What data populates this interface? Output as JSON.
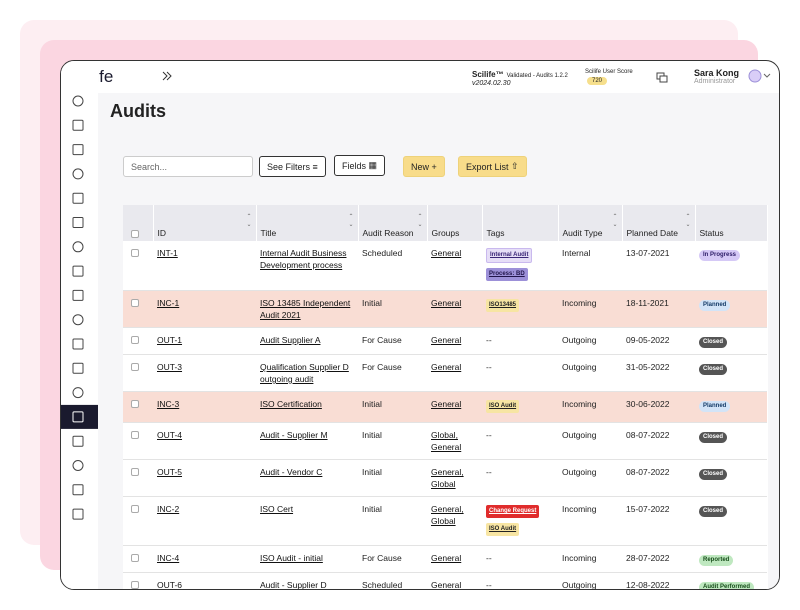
{
  "header": {
    "logo": "Scilife",
    "product": "Scilife™",
    "validated": "Validated - Audits 1.2.2",
    "version": "v2024.02.30",
    "score_label": "Scilife User Score",
    "score": "720",
    "user_name": "Sara Kong",
    "user_role": "Administrator"
  },
  "page_title": "Audits",
  "toolbar": {
    "search": "Search...",
    "filters": "See Filters",
    "fields": "Fields",
    "new": "New +",
    "export": "Export List"
  },
  "table": {
    "columns": [
      "ID",
      "Title",
      "Audit Reason",
      "Groups",
      "Tags",
      "Audit Type",
      "Planned Date",
      "Status"
    ],
    "rows": [
      {
        "id": "INT-1",
        "title": "Internal Audit Business Development process",
        "reason": "Scheduled",
        "groups": "General",
        "tags": [
          {
            "label": "Internal Audit",
            "tone": "lilac"
          },
          {
            "label": "Process: BD",
            "tone": "violet"
          }
        ],
        "type": "Internal",
        "date": "13-07-2021",
        "status": {
          "label": "In Progress",
          "tone": "progress"
        },
        "highlighted": false
      },
      {
        "id": "INC-1",
        "title": "ISO 13485 Independent Audit 2021",
        "reason": "Initial",
        "groups": "General",
        "tags": [
          {
            "label": "ISO13485",
            "tone": "yellow"
          }
        ],
        "type": "Incoming",
        "date": "18-11-2021",
        "status": {
          "label": "Planned",
          "tone": "planned"
        },
        "highlighted": true
      },
      {
        "id": "OUT-1",
        "title": "Audit Supplier A",
        "reason": "For Cause",
        "groups": "General",
        "tags": "--",
        "type": "Outgoing",
        "date": "09-05-2022",
        "status": {
          "label": "Closed",
          "tone": "closed"
        },
        "highlighted": false
      },
      {
        "id": "OUT-3",
        "title": "Qualification Supplier D outgoing audit",
        "reason": "For Cause",
        "groups": "General",
        "tags": "--",
        "type": "Outgoing",
        "date": "31-05-2022",
        "status": {
          "label": "Closed",
          "tone": "closed"
        },
        "highlighted": false
      },
      {
        "id": "INC-3",
        "title": "ISO Certification",
        "reason": "Initial",
        "groups": "General",
        "tags": [
          {
            "label": "ISO Audit",
            "tone": "yellow"
          }
        ],
        "type": "Incoming",
        "date": "30-06-2022",
        "status": {
          "label": "Planned",
          "tone": "planned"
        },
        "highlighted": true
      },
      {
        "id": "OUT-4",
        "title": "Audit - Supplier M",
        "reason": "Initial",
        "groups": "Global, General",
        "tags": "--",
        "type": "Outgoing",
        "date": "08-07-2022",
        "status": {
          "label": "Closed",
          "tone": "closed"
        },
        "highlighted": false
      },
      {
        "id": "OUT-5",
        "title": "Audit - Vendor C",
        "reason": "Initial",
        "groups": "General, Global",
        "tags": "--",
        "type": "Outgoing",
        "date": "08-07-2022",
        "status": {
          "label": "Closed",
          "tone": "closed"
        },
        "highlighted": false
      },
      {
        "id": "INC-2",
        "title": "ISO Cert",
        "reason": "Initial",
        "groups": "General, Global",
        "tags": [
          {
            "label": "Change Request",
            "tone": "red"
          },
          {
            "label": "ISO Audit",
            "tone": "yellow"
          }
        ],
        "type": "Incoming",
        "date": "15-07-2022",
        "status": {
          "label": "Closed",
          "tone": "closed"
        },
        "highlighted": false
      },
      {
        "id": "INC-4",
        "title": "ISO Audit - initial",
        "reason": "For Cause",
        "groups": "General",
        "tags": "--",
        "type": "Incoming",
        "date": "28-07-2022",
        "status": {
          "label": "Reported",
          "tone": "green"
        },
        "highlighted": false
      },
      {
        "id": "OUT-6",
        "title": "Audit - Supplier D",
        "reason": "Scheduled",
        "groups": "General",
        "tags": "--",
        "type": "Outgoing",
        "date": "12-08-2022",
        "status": {
          "label": "Audit Performed",
          "tone": "green"
        },
        "highlighted": false
      }
    ]
  }
}
